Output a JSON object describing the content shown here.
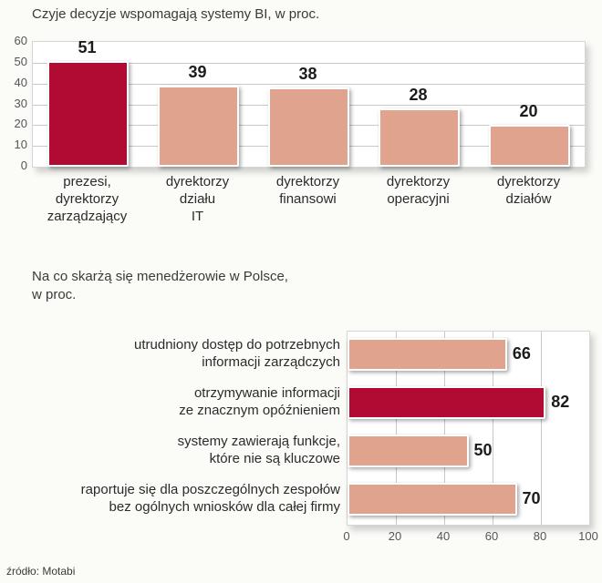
{
  "colors": {
    "highlight": "#b20b33",
    "normal": "#e0a48e",
    "value_label": "#1c1c1c",
    "axis_label": "#555555",
    "title": "#3a3a3a"
  },
  "footer": {
    "source": "źródło: Motabi"
  },
  "chart_data": [
    {
      "type": "bar",
      "orientation": "vertical",
      "title": "Czyje decyzje wspomagają systemy BI, w proc.",
      "categories": [
        "prezesi,\ndyrektorzy\nzarządzający",
        "dyrektorzy\ndziału\nIT",
        "dyrektorzy\nfinansowi",
        "dyrektorzy\noperacyjni",
        "dyrektorzy\ndziałów"
      ],
      "values": [
        51,
        39,
        38,
        28,
        20
      ],
      "highlight_index": 0,
      "ylim": [
        0,
        60
      ],
      "yticks": [
        60,
        50,
        40,
        30,
        20,
        10,
        0
      ],
      "grid": true,
      "legend": "none"
    },
    {
      "type": "bar",
      "orientation": "horizontal",
      "title": "Na co skarżą się menedżerowie w Polsce,\nw proc.",
      "categories": [
        "utrudniony dostęp do potrzebnych\ninformacji zarządczych",
        "otrzymywanie informacji\nze znacznym opóźnieniem",
        "systemy zawierają funkcje,\nktóre nie są kluczowe",
        "raportuje się dla poszczególnych zespołów\nbez ogólnych wniosków dla całej firmy"
      ],
      "values": [
        66,
        82,
        50,
        70
      ],
      "highlight_index": 1,
      "xlim": [
        0,
        100
      ],
      "xticks": [
        0,
        20,
        40,
        60,
        80,
        100
      ],
      "grid": true,
      "legend": "none"
    }
  ]
}
